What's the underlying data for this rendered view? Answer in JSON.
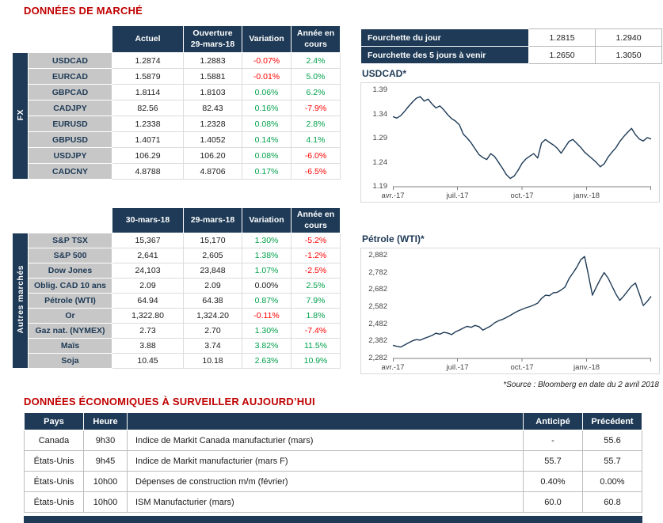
{
  "colors": {
    "navy": "#1E3A56",
    "heading_red": "#C00000",
    "positive": "#00A14B",
    "negative": "#FF0000",
    "label_gray": "#C7C7C7"
  },
  "titles": {
    "market": "DONNÉES DE MARCHÉ",
    "econ": "DONNÉES ÉCONOMIQUES À SURVEILLER AUJOURD’HUI"
  },
  "fx": {
    "band": "FX",
    "headers": [
      "Actuel",
      "Ouverture\n29-mars-18",
      "Variation",
      "Année en\ncours"
    ],
    "rows": [
      {
        "label": "USDCAD",
        "current": "1.2874",
        "open": "1.2883",
        "chg": "-0.07%",
        "ytd": "2.4%"
      },
      {
        "label": "EURCAD",
        "current": "1.5879",
        "open": "1.5881",
        "chg": "-0.01%",
        "ytd": "5.0%"
      },
      {
        "label": "GBPCAD",
        "current": "1.8114",
        "open": "1.8103",
        "chg": "0.06%",
        "ytd": "6.2%"
      },
      {
        "label": "CADJPY",
        "current": "82.56",
        "open": "82.43",
        "chg": "0.16%",
        "ytd": "-7.9%"
      },
      {
        "label": "EURUSD",
        "current": "1.2338",
        "open": "1.2328",
        "chg": "0.08%",
        "ytd": "2.8%"
      },
      {
        "label": "GBPUSD",
        "current": "1.4071",
        "open": "1.4052",
        "chg": "0.14%",
        "ytd": "4.1%"
      },
      {
        "label": "USDJPY",
        "current": "106.29",
        "open": "106.20",
        "chg": "0.08%",
        "ytd": "-6.0%"
      },
      {
        "label": "CADCNY",
        "current": "4.8788",
        "open": "4.8706",
        "chg": "0.17%",
        "ytd": "-6.5%"
      }
    ]
  },
  "other": {
    "band": "Autres marchés",
    "headers": [
      "30-mars-18",
      "29-mars-18",
      "Variation",
      "Année en\ncours"
    ],
    "rows": [
      {
        "label": "S&P TSX",
        "current": "15,367",
        "open": "15,170",
        "chg": "1.30%",
        "ytd": "-5.2%"
      },
      {
        "label": "S&P 500",
        "current": "2,641",
        "open": "2,605",
        "chg": "1.38%",
        "ytd": "-1.2%"
      },
      {
        "label": "Dow Jones",
        "current": "24,103",
        "open": "23,848",
        "chg": "1.07%",
        "ytd": "-2.5%"
      },
      {
        "label": "Oblig. CAD 10 ans",
        "current": "2.09",
        "open": "2.09",
        "chg": "0.00%",
        "ytd": "2.5%"
      },
      {
        "label": "Pétrole (WTI)",
        "current": "64.94",
        "open": "64.38",
        "chg": "0.87%",
        "ytd": "7.9%"
      },
      {
        "label": "Or",
        "current": "1,322.80",
        "open": "1,324.20",
        "chg": "-0.11%",
        "ytd": "1.8%"
      },
      {
        "label": "Gaz nat. (NYMEX)",
        "current": "2.73",
        "open": "2.70",
        "chg": "1.30%",
        "ytd": "-7.4%"
      },
      {
        "label": "Maïs",
        "current": "3.88",
        "open": "3.74",
        "chg": "3.82%",
        "ytd": "11.5%"
      },
      {
        "label": "Soja",
        "current": "10.45",
        "open": "10.18",
        "chg": "2.63%",
        "ytd": "10.9%"
      }
    ]
  },
  "range": {
    "rows": [
      {
        "label": "Fourchette du jour",
        "low": "1.2815",
        "high": "1.2940"
      },
      {
        "label": "Fourchette des 5 jours à venir",
        "low": "1.2650",
        "high": "1.3050"
      }
    ]
  },
  "chart_data": [
    {
      "type": "line",
      "title": "USDCAD*",
      "x_tick_labels": [
        "avr.-17",
        "juil.-17",
        "oct.-17",
        "janv.-18"
      ],
      "y_tick_labels": [
        "1.39",
        "1.34",
        "1.29",
        "1.24",
        "1.19"
      ],
      "ylim": [
        1.19,
        1.39
      ],
      "legend": "none",
      "grid": "off",
      "values": [
        1.334,
        1.331,
        1.336,
        1.345,
        1.355,
        1.364,
        1.372,
        1.375,
        1.366,
        1.37,
        1.36,
        1.352,
        1.356,
        1.348,
        1.338,
        1.33,
        1.325,
        1.317,
        1.298,
        1.29,
        1.28,
        1.268,
        1.256,
        1.25,
        1.246,
        1.258,
        1.252,
        1.24,
        1.228,
        1.215,
        1.207,
        1.212,
        1.224,
        1.238,
        1.247,
        1.253,
        1.258,
        1.249,
        1.28,
        1.287,
        1.281,
        1.276,
        1.269,
        1.259,
        1.271,
        1.283,
        1.287,
        1.279,
        1.271,
        1.261,
        1.254,
        1.247,
        1.24,
        1.231,
        1.237,
        1.251,
        1.261,
        1.27,
        1.283,
        1.293,
        1.302,
        1.31,
        1.297,
        1.288,
        1.284,
        1.291,
        1.288
      ]
    },
    {
      "type": "line",
      "title": "Pétrole (WTI)*",
      "x_tick_labels": [
        "avr.-17",
        "juil.-17",
        "oct.-17",
        "janv.-18"
      ],
      "y_tick_labels": [
        "2,882",
        "2,782",
        "2,682",
        "2,582",
        "2,482",
        "2,382",
        "2,282"
      ],
      "ylim": [
        2282,
        2882
      ],
      "legend": "none",
      "grid": "off",
      "values": [
        2358,
        2352,
        2348,
        2360,
        2372,
        2384,
        2391,
        2388,
        2398,
        2406,
        2415,
        2428,
        2422,
        2433,
        2429,
        2420,
        2436,
        2446,
        2458,
        2468,
        2462,
        2473,
        2466,
        2446,
        2458,
        2470,
        2488,
        2500,
        2508,
        2519,
        2531,
        2545,
        2557,
        2566,
        2575,
        2582,
        2591,
        2602,
        2629,
        2648,
        2645,
        2662,
        2665,
        2678,
        2695,
        2743,
        2776,
        2810,
        2853,
        2872,
        2762,
        2648,
        2695,
        2740,
        2779,
        2747,
        2701,
        2655,
        2618,
        2643,
        2672,
        2701,
        2718,
        2655,
        2588,
        2612,
        2641
      ]
    }
  ],
  "footnote": "*Source : Bloomberg en date du  2 avril 2018",
  "econ": {
    "headers": [
      "Pays",
      "Heure",
      "",
      "Anticipé",
      "Précédent"
    ],
    "rows": [
      {
        "country": "Canada",
        "time": "9h30",
        "event": "Indice de Markit Canada manufacturier (mars)",
        "exp": "-",
        "prev": "55.6"
      },
      {
        "country": "États-Unis",
        "time": "9h45",
        "event": "Indice de Markit manufacturier (mars F)",
        "exp": "55.7",
        "prev": "55.7"
      },
      {
        "country": "États-Unis",
        "time": "10h00",
        "event": "Dépenses de construction m/m (février)",
        "exp": "0.40%",
        "prev": "0.00%"
      },
      {
        "country": "États-Unis",
        "time": "10h00",
        "event": "ISM Manufacturier (mars)",
        "exp": "60.0",
        "prev": "60.8"
      }
    ]
  }
}
